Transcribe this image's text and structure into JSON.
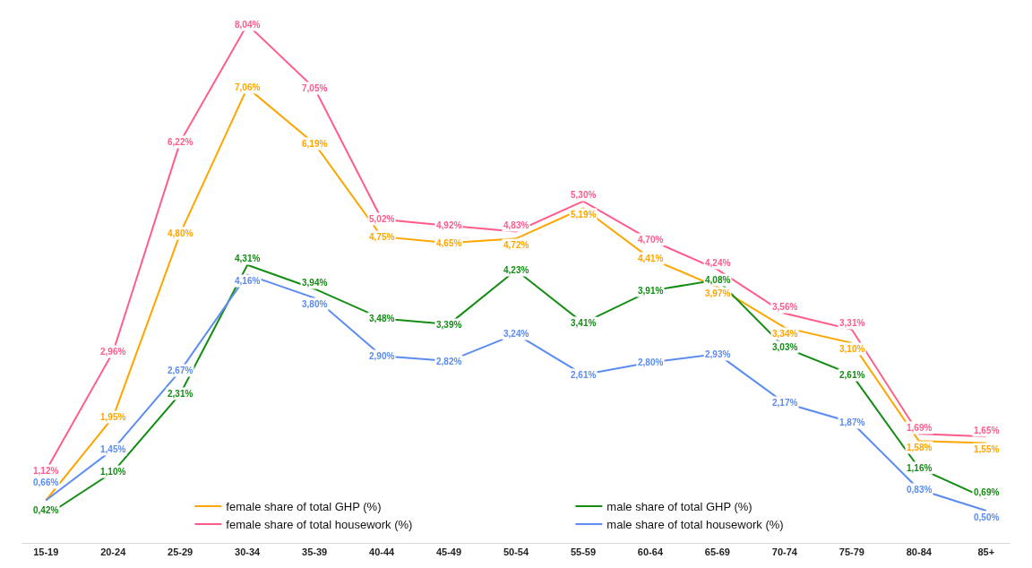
{
  "chart_data": {
    "type": "line",
    "categories": [
      "15-19",
      "20-24",
      "25-29",
      "30-34",
      "35-39",
      "40-44",
      "45-49",
      "50-54",
      "55-59",
      "60-64",
      "65-69",
      "70-74",
      "75-79",
      "80-84",
      "85+"
    ],
    "series": [
      {
        "name": "female share of total GHP (%)",
        "color": "#ffa500",
        "values": [
          0.66,
          1.95,
          4.8,
          7.06,
          6.19,
          4.75,
          4.65,
          4.72,
          5.19,
          4.41,
          3.97,
          3.34,
          3.1,
          1.58,
          1.55
        ],
        "value_labels": [
          null,
          "1,95%",
          "4,80%",
          "7,06%",
          "6,19%",
          "4,75%",
          "4,65%",
          "4,72%",
          "5,19%",
          "4,41%",
          "3,97%",
          "3,34%",
          "3,10%",
          "1,58%",
          "1,55%"
        ]
      },
      {
        "name": "male share of total GHP (%)",
        "color": "#138d13",
        "values": [
          0.42,
          1.1,
          2.31,
          4.31,
          3.94,
          3.48,
          3.39,
          4.23,
          3.41,
          3.91,
          4.08,
          3.03,
          2.61,
          1.16,
          0.69
        ],
        "value_labels": [
          "0,42%",
          "1,10%",
          "2,31%",
          "4,31%",
          "3,94%",
          "3,48%",
          "3,39%",
          "4,23%",
          "3,41%",
          "3,91%",
          "4,08%",
          "3,03%",
          "2,61%",
          "1,16%",
          "0,69%"
        ]
      },
      {
        "name": "female share of total housework (%)",
        "color": "#ff5c8a",
        "values": [
          1.12,
          2.96,
          6.22,
          8.04,
          7.05,
          5.02,
          4.92,
          4.83,
          5.3,
          4.7,
          4.24,
          3.56,
          3.31,
          1.69,
          1.65
        ],
        "value_labels": [
          "1,12%",
          "2,96%",
          "6,22%",
          "8,04%",
          "7,05%",
          "5,02%",
          "4,92%",
          "4,83%",
          "5,30%",
          "4,70%",
          "4,24%",
          "3,56%",
          "3,31%",
          "1,69%",
          "1,65%"
        ]
      },
      {
        "name": "male share of total housework (%)",
        "color": "#5b8cf0",
        "values": [
          0.66,
          1.45,
          2.67,
          4.16,
          3.8,
          2.9,
          2.82,
          3.24,
          2.61,
          2.8,
          2.93,
          2.17,
          1.87,
          0.83,
          0.5
        ],
        "value_labels": [
          "0,66%",
          "1,45%",
          "2,67%",
          "4,16%",
          "3,80%",
          "2,90%",
          "2,82%",
          "3,24%",
          "2,61%",
          "2,80%",
          "2,93%",
          "2,17%",
          "1,87%",
          "0,83%",
          "0,50%"
        ]
      }
    ],
    "legend": "bottom",
    "line_style": "solid"
  }
}
